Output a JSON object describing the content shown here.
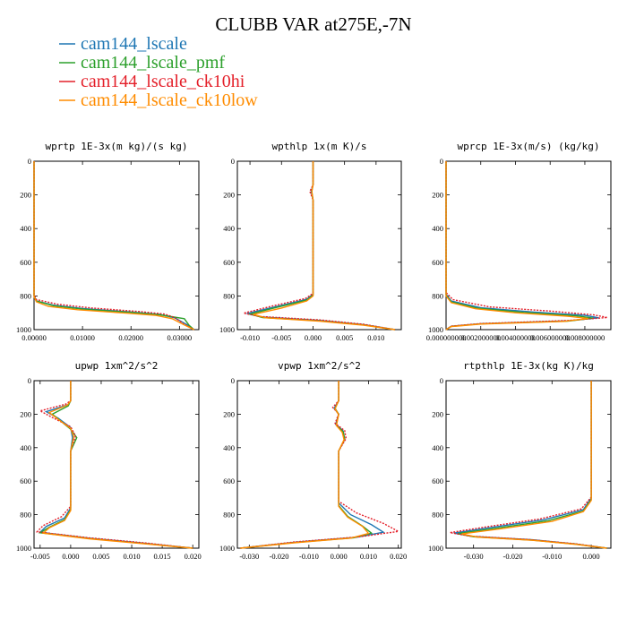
{
  "title": "CLUBB VAR at275E,-7N",
  "legend": [
    {
      "name": "cam144_lscale",
      "color": "#1f77b4"
    },
    {
      "name": "cam144_lscale_pmf",
      "color": "#2ca02c"
    },
    {
      "name": "cam144_lscale_ck10hi",
      "color": "#e4202a"
    },
    {
      "name": "cam144_lscale_ck10low",
      "color": "#ff8c00"
    }
  ],
  "chart_data": [
    {
      "type": "line",
      "title": "wprtp  1E-3x(m kg)/(s kg)",
      "xlim": [
        0,
        0.034
      ],
      "ylim": [
        1000,
        0
      ],
      "xticks": [
        0,
        0.01,
        0.02,
        0.03
      ],
      "xtick_labels": [
        "0.00000",
        "0.01000",
        "0.02000",
        "0.03000"
      ],
      "yticks": [
        0,
        200,
        400,
        600,
        800,
        1000
      ],
      "ytick_labels": [
        "0",
        "200",
        "400",
        "600",
        "800",
        "1000"
      ],
      "series": [
        {
          "name": "cam144_lscale",
          "color": "#1f77b4",
          "x": [
            0,
            0,
            0.0005,
            0.004,
            0.01,
            0.02,
            0.026,
            0.029,
            0.0315,
            0.033
          ],
          "y": [
            0,
            800,
            830,
            855,
            875,
            895,
            910,
            930,
            970,
            1000
          ]
        },
        {
          "name": "cam144_lscale_pmf",
          "color": "#2ca02c",
          "x": [
            0,
            0,
            0.0005,
            0.004,
            0.01,
            0.02,
            0.026,
            0.031,
            0.032,
            0.033
          ],
          "y": [
            0,
            800,
            830,
            858,
            878,
            898,
            912,
            935,
            975,
            1000
          ]
        },
        {
          "name": "cam144_lscale_ck10hi",
          "color": "#e4202a",
          "x": [
            0,
            0,
            0.0005,
            0.005,
            0.012,
            0.022,
            0.027,
            0.029,
            0.031,
            0.033
          ],
          "y": [
            0,
            795,
            822,
            850,
            872,
            893,
            908,
            928,
            968,
            1000
          ]
        },
        {
          "name": "cam144_lscale_ck10low",
          "color": "#ff8c00",
          "x": [
            0,
            0,
            0.0005,
            0.003,
            0.009,
            0.019,
            0.025,
            0.0285,
            0.031,
            0.033
          ],
          "y": [
            0,
            805,
            835,
            862,
            882,
            902,
            915,
            935,
            972,
            1000
          ]
        }
      ]
    },
    {
      "type": "line",
      "title": "wpthlp  1x(m K)/s",
      "xlim": [
        -0.012,
        0.014
      ],
      "ylim": [
        1000,
        0
      ],
      "xticks": [
        -0.01,
        -0.005,
        0,
        0.005,
        0.01
      ],
      "xtick_labels": [
        "-0.010",
        "-0.005",
        "0.000",
        "0.005",
        "0.010"
      ],
      "yticks": [
        0,
        200,
        400,
        600,
        800,
        1000
      ],
      "ytick_labels": [
        "0",
        "200",
        "400",
        "600",
        "800",
        "1000"
      ],
      "series": [
        {
          "name": "cam144_lscale",
          "color": "#1f77b4",
          "x": [
            0,
            0,
            -0.0003,
            0,
            0,
            -0.001,
            -0.006,
            -0.0105,
            -0.008,
            0.001,
            0.008,
            0.013
          ],
          "y": [
            0,
            140,
            180,
            230,
            790,
            820,
            865,
            905,
            925,
            945,
            970,
            1000
          ]
        },
        {
          "name": "cam144_lscale_pmf",
          "color": "#2ca02c",
          "x": [
            0,
            0,
            -0.0002,
            0,
            0,
            -0.001,
            -0.006,
            -0.01,
            -0.008,
            0.001,
            0.008,
            0.013
          ],
          "y": [
            0,
            140,
            180,
            230,
            795,
            825,
            870,
            908,
            928,
            948,
            972,
            1000
          ]
        },
        {
          "name": "cam144_lscale_ck10hi",
          "color": "#e4202a",
          "x": [
            0,
            0,
            -0.0005,
            0,
            0,
            -0.0012,
            -0.0065,
            -0.011,
            -0.0085,
            0.001,
            0.008,
            0.013
          ],
          "y": [
            0,
            140,
            180,
            230,
            785,
            815,
            860,
            902,
            922,
            942,
            968,
            1000
          ]
        },
        {
          "name": "cam144_lscale_ck10low",
          "color": "#ff8c00",
          "x": [
            0,
            0,
            -0.0002,
            0,
            0,
            -0.001,
            -0.005,
            -0.0095,
            -0.0075,
            0.001,
            0.008,
            0.013
          ],
          "y": [
            0,
            140,
            180,
            230,
            800,
            830,
            872,
            910,
            930,
            950,
            974,
            1000
          ]
        }
      ]
    },
    {
      "type": "line",
      "title": "wprcp  1E-3x(m/s) (kg/kg)",
      "xlim": [
        0,
        0.0095
      ],
      "ylim": [
        1000,
        0
      ],
      "xticks": [
        0,
        0.002,
        0.004,
        0.006,
        0.008
      ],
      "xtick_labels": [
        "0.000000000",
        "0.002000000",
        "0.004000000",
        "0.006000000",
        "0.008000000"
      ],
      "yticks": [
        0,
        200,
        400,
        600,
        800,
        1000
      ],
      "ytick_labels": [
        "0",
        "200",
        "400",
        "600",
        "800",
        "1000"
      ],
      "series": [
        {
          "name": "cam144_lscale",
          "color": "#1f77b4",
          "x": [
            0,
            0,
            0.0003,
            0.002,
            0.005,
            0.008,
            0.0088,
            0.007,
            0.002,
            0.0003,
            0
          ],
          "y": [
            0,
            790,
            830,
            870,
            895,
            915,
            930,
            948,
            965,
            980,
            1000
          ]
        },
        {
          "name": "cam144_lscale_pmf",
          "color": "#2ca02c",
          "x": [
            0,
            0,
            0.0003,
            0.0018,
            0.0045,
            0.0075,
            0.0085,
            0.007,
            0.002,
            0.0003,
            0
          ],
          "y": [
            0,
            795,
            835,
            873,
            898,
            918,
            932,
            950,
            966,
            981,
            1000
          ]
        },
        {
          "name": "cam144_lscale_ck10hi",
          "color": "#e4202a",
          "x": [
            0,
            0,
            0.0004,
            0.0025,
            0.006,
            0.0085,
            0.0093,
            0.007,
            0.002,
            0.0003,
            0
          ],
          "y": [
            0,
            780,
            822,
            865,
            890,
            912,
            928,
            946,
            964,
            979,
            1000
          ]
        },
        {
          "name": "cam144_lscale_ck10low",
          "color": "#ff8c00",
          "x": [
            0,
            0,
            0.0003,
            0.0017,
            0.004,
            0.007,
            0.0082,
            0.0068,
            0.002,
            0.0003,
            0
          ],
          "y": [
            0,
            800,
            840,
            876,
            900,
            920,
            934,
            951,
            967,
            982,
            1000
          ]
        }
      ]
    },
    {
      "type": "line",
      "title": "upwp  1xm^2/s^2",
      "xlim": [
        -0.006,
        0.021
      ],
      "ylim": [
        1000,
        0
      ],
      "xticks": [
        -0.005,
        0,
        0.005,
        0.01,
        0.015,
        0.02
      ],
      "xtick_labels": [
        "-0.005",
        "0.000",
        "0.005",
        "0.010",
        "0.015",
        "0.020"
      ],
      "yticks": [
        0,
        200,
        400,
        600,
        800,
        1000
      ],
      "ytick_labels": [
        "0",
        "200",
        "400",
        "600",
        "800",
        "1000"
      ],
      "series": [
        {
          "name": "cam144_lscale",
          "color": "#1f77b4",
          "x": [
            0,
            0,
            -0.0005,
            -0.004,
            -0.002,
            0,
            0.0003,
            0,
            0,
            -0.001,
            -0.004,
            -0.005,
            0.003,
            0.012,
            0.02
          ],
          "y": [
            0,
            120,
            145,
            185,
            225,
            280,
            340,
            420,
            760,
            820,
            870,
            905,
            940,
            970,
            1000
          ]
        },
        {
          "name": "cam144_lscale_pmf",
          "color": "#2ca02c",
          "x": [
            0,
            0,
            -0.0004,
            -0.003,
            -0.0015,
            0,
            0.001,
            0,
            0,
            -0.001,
            -0.0035,
            -0.005,
            0.003,
            0.012,
            0.02
          ],
          "y": [
            0,
            120,
            150,
            200,
            245,
            290,
            340,
            420,
            770,
            830,
            875,
            908,
            942,
            972,
            1000
          ]
        },
        {
          "name": "cam144_lscale_ck10hi",
          "color": "#e4202a",
          "x": [
            0,
            0,
            -0.0008,
            -0.005,
            -0.003,
            0,
            0.0008,
            0,
            0,
            -0.0015,
            -0.0045,
            -0.0055,
            0.003,
            0.012,
            0.02
          ],
          "y": [
            0,
            120,
            140,
            180,
            220,
            275,
            330,
            420,
            750,
            812,
            865,
            902,
            938,
            968,
            1000
          ]
        },
        {
          "name": "cam144_lscale_ck10low",
          "color": "#ff8c00",
          "x": [
            0,
            0,
            -0.0005,
            -0.0035,
            -0.002,
            0,
            0.0005,
            0,
            0,
            -0.001,
            -0.0035,
            -0.0045,
            0.003,
            0.012,
            0.02
          ],
          "y": [
            0,
            120,
            145,
            190,
            232,
            285,
            335,
            420,
            775,
            835,
            878,
            910,
            944,
            974,
            1000
          ]
        }
      ]
    },
    {
      "type": "line",
      "title": "vpwp  1xm^2/s^2",
      "xlim": [
        -0.034,
        0.021
      ],
      "ylim": [
        1000,
        0
      ],
      "xticks": [
        -0.03,
        -0.02,
        -0.01,
        0,
        0.01,
        0.02
      ],
      "xtick_labels": [
        "-0.030",
        "-0.020",
        "-0.010",
        "0.000",
        "0.010",
        "0.020"
      ],
      "yticks": [
        0,
        200,
        400,
        600,
        800,
        1000
      ],
      "ytick_labels": [
        "0",
        "200",
        "400",
        "600",
        "800",
        "1000"
      ],
      "series": [
        {
          "name": "cam144_lscale",
          "color": "#1f77b4",
          "x": [
            0,
            0,
            -0.0015,
            0,
            -0.001,
            0.0015,
            0.002,
            0,
            0,
            0.004,
            0.011,
            0.015,
            0.006,
            -0.015,
            -0.033
          ],
          "y": [
            0,
            120,
            165,
            200,
            260,
            300,
            350,
            420,
            730,
            800,
            860,
            905,
            935,
            965,
            1000
          ]
        },
        {
          "name": "cam144_lscale_pmf",
          "color": "#2ca02c",
          "x": [
            0,
            0,
            -0.0012,
            0,
            -0.0008,
            0.0015,
            0.002,
            0,
            0,
            0.003,
            0.008,
            0.011,
            0.005,
            -0.015,
            -0.033
          ],
          "y": [
            0,
            120,
            165,
            200,
            265,
            305,
            350,
            420,
            745,
            810,
            868,
            910,
            938,
            967,
            1000
          ]
        },
        {
          "name": "cam144_lscale_ck10hi",
          "color": "#e4202a",
          "x": [
            0,
            0,
            -0.002,
            0,
            -0.0012,
            0.002,
            0.0025,
            0,
            0,
            0.006,
            0.015,
            0.02,
            0.007,
            -0.015,
            -0.033
          ],
          "y": [
            0,
            120,
            160,
            198,
            255,
            298,
            345,
            420,
            720,
            790,
            852,
            900,
            932,
            963,
            1000
          ]
        },
        {
          "name": "cam144_lscale_ck10low",
          "color": "#ff8c00",
          "x": [
            0,
            0,
            -0.0012,
            0,
            -0.0008,
            0.0012,
            0.0018,
            0,
            0,
            0.003,
            0.008,
            0.01,
            0.004,
            -0.015,
            -0.033
          ],
          "y": [
            0,
            120,
            168,
            203,
            268,
            308,
            352,
            420,
            750,
            815,
            870,
            912,
            940,
            968,
            1000
          ]
        }
      ]
    },
    {
      "type": "line",
      "title": "rtpthlp  1E-3x(kg K)/kg",
      "xlim": [
        -0.037,
        0.005
      ],
      "ylim": [
        1000,
        0
      ],
      "xticks": [
        -0.03,
        -0.02,
        -0.01,
        0
      ],
      "xtick_labels": [
        "-0.030",
        "-0.020",
        "-0.010",
        "0.000"
      ],
      "yticks": [
        0,
        200,
        400,
        600,
        800,
        1000
      ],
      "ytick_labels": [
        "0",
        "200",
        "400",
        "600",
        "800",
        "1000"
      ],
      "series": [
        {
          "name": "cam144_lscale",
          "color": "#1f77b4",
          "x": [
            0,
            0,
            -0.002,
            -0.012,
            -0.025,
            -0.035,
            -0.03,
            -0.015,
            -0.004,
            0.004
          ],
          "y": [
            0,
            700,
            770,
            830,
            875,
            910,
            930,
            950,
            975,
            1000
          ]
        },
        {
          "name": "cam144_lscale_pmf",
          "color": "#2ca02c",
          "x": [
            0,
            0,
            -0.002,
            -0.011,
            -0.024,
            -0.034,
            -0.03,
            -0.015,
            -0.004,
            0.004
          ],
          "y": [
            0,
            710,
            778,
            836,
            880,
            913,
            932,
            952,
            976,
            1000
          ]
        },
        {
          "name": "cam144_lscale_ck10hi",
          "color": "#e4202a",
          "x": [
            0,
            0,
            -0.0025,
            -0.013,
            -0.026,
            -0.036,
            -0.031,
            -0.016,
            -0.004,
            0.004
          ],
          "y": [
            0,
            695,
            765,
            825,
            870,
            907,
            928,
            948,
            974,
            1000
          ]
        },
        {
          "name": "cam144_lscale_ck10low",
          "color": "#ff8c00",
          "x": [
            0,
            0,
            -0.002,
            -0.01,
            -0.023,
            -0.033,
            -0.029,
            -0.015,
            -0.004,
            0.004
          ],
          "y": [
            0,
            715,
            782,
            840,
            884,
            915,
            934,
            953,
            977,
            1000
          ]
        }
      ]
    }
  ]
}
